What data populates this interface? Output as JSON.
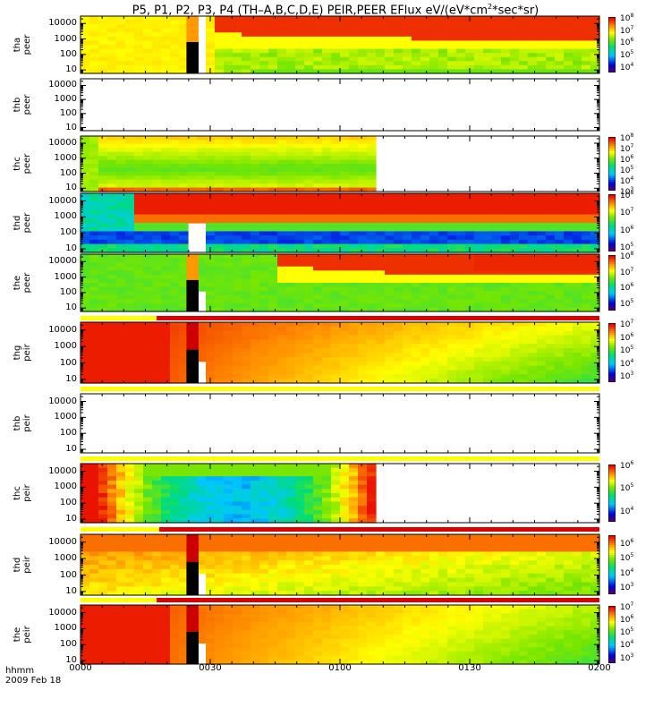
{
  "title_prefix": "P5, P1, P2, P3, P4 (TH–A,B,C,D,E) PEIR,PEER EFlux eV/(eV*cm",
  "title_sup": "2",
  "title_suffix": "*sec*sr)",
  "time_label": "hhmm",
  "date_label": "2009 Feb 18",
  "x_ticks": [
    "0000",
    "0030",
    "0100",
    "0130",
    "0200"
  ],
  "y_ticks": [
    "10000",
    "1000",
    "100",
    "10"
  ],
  "colors": {
    "frame": "#000000",
    "yellow_bar": "#ffff00",
    "red_bar": "#dd0000"
  },
  "chart_data": [
    {
      "type": "heatmap",
      "ylabel": [
        "tha",
        "peer"
      ],
      "yscale": "log",
      "ylim_eV": [
        6,
        30000
      ],
      "xlim": [
        "0000",
        "0200"
      ],
      "colorbar_exponents": [
        "8",
        "7",
        "6",
        "5",
        "4"
      ],
      "colorscale": "log",
      "colorbar_range": [
        3000,
        100000000
      ]
    },
    {
      "type": "heatmap",
      "ylabel": [
        "thb",
        "peer"
      ],
      "yscale": "log",
      "ylim_eV": [
        6,
        30000
      ],
      "xlim": [
        "0000",
        "0200"
      ],
      "colorbar_exponents": [],
      "note_empty": true
    },
    {
      "type": "heatmap",
      "ylabel": [
        "thc",
        "peer"
      ],
      "yscale": "log",
      "ylim_eV": [
        6,
        30000
      ],
      "xlim": [
        "0000",
        "0200"
      ],
      "colorbar_exponents": [
        "8",
        "7",
        "6",
        "5",
        "4",
        "3"
      ],
      "colorscale": "log",
      "colorbar_range": [
        1000,
        100000000
      ]
    },
    {
      "type": "heatmap",
      "ylabel": [
        "thd",
        "peer"
      ],
      "yscale": "log",
      "ylim_eV": [
        6,
        30000
      ],
      "xlim": [
        "0000",
        "0200"
      ],
      "colorbar_exponents": [
        "8",
        "7",
        "6",
        "5"
      ],
      "colorscale": "log",
      "colorbar_range": [
        50000,
        100000000
      ]
    },
    {
      "type": "heatmap",
      "ylabel": [
        "the",
        "peer"
      ],
      "yscale": "log",
      "ylim_eV": [
        6,
        30000
      ],
      "xlim": [
        "0000",
        "0200"
      ],
      "colorbar_exponents": [
        "8",
        "7",
        "6",
        "5"
      ],
      "colorscale": "log",
      "colorbar_range": [
        30000,
        100000000
      ]
    },
    {
      "type": "heatmap",
      "ylabel": [
        "thg",
        "peir"
      ],
      "yscale": "log",
      "ylim_eV": [
        6,
        30000
      ],
      "xlim": [
        "0000",
        "0200"
      ],
      "colorbar_exponents": [
        "7",
        "6",
        "5",
        "4",
        "3"
      ],
      "colorscale": "log",
      "colorbar_range": [
        300,
        10000000
      ]
    },
    {
      "type": "heatmap",
      "ylabel": [
        "thb",
        "peir"
      ],
      "yscale": "log",
      "ylim_eV": [
        6,
        30000
      ],
      "xlim": [
        "0000",
        "0200"
      ],
      "colorbar_exponents": [],
      "note_empty": true
    },
    {
      "type": "heatmap",
      "ylabel": [
        "thc",
        "peir"
      ],
      "yscale": "log",
      "ylim_eV": [
        6,
        30000
      ],
      "xlim": [
        "0000",
        "0200"
      ],
      "colorbar_exponents": [
        "6",
        "5",
        "4"
      ],
      "colorscale": "log",
      "colorbar_range": [
        3000,
        1000000
      ]
    },
    {
      "type": "heatmap",
      "ylabel": [
        "thd",
        "peir"
      ],
      "yscale": "log",
      "ylim_eV": [
        6,
        30000
      ],
      "xlim": [
        "0000",
        "0200"
      ],
      "colorbar_exponents": [
        "6",
        "5",
        "4",
        "3"
      ],
      "colorscale": "log",
      "colorbar_range": [
        300,
        3000000
      ]
    },
    {
      "type": "heatmap",
      "ylabel": [
        "the",
        "peir"
      ],
      "yscale": "log",
      "ylim_eV": [
        6,
        30000
      ],
      "xlim": [
        "0000",
        "0200"
      ],
      "colorbar_exponents": [
        "7",
        "6",
        "5",
        "4",
        "3"
      ],
      "colorscale": "log",
      "colorbar_range": [
        300,
        10000000
      ]
    }
  ]
}
